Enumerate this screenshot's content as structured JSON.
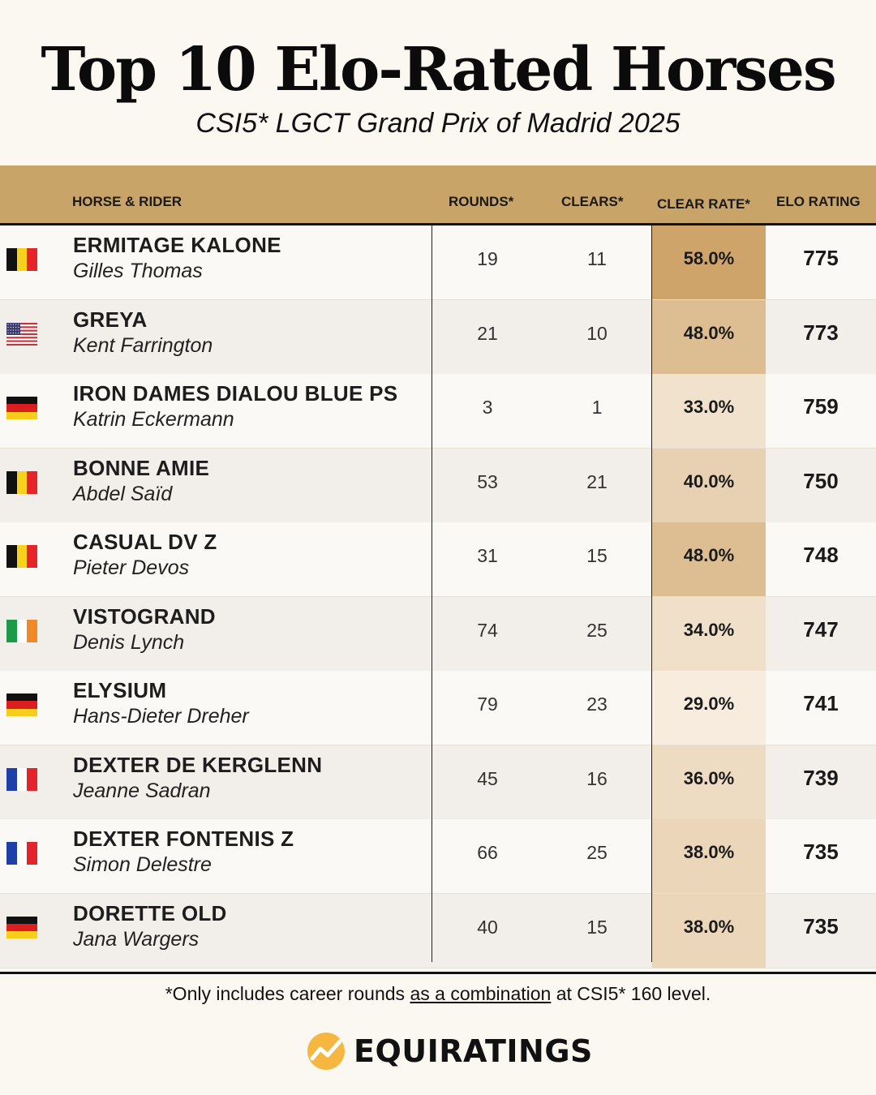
{
  "title": "Top 10 Elo-Rated Horses",
  "subtitle": "CSI5* LGCT Grand Prix of Madrid 2025",
  "header": {
    "horse_rider": "HORSE & RIDER",
    "rounds": "ROUNDS*",
    "clears": "CLEARS*",
    "clear_rate": "CLEAR RATE*",
    "elo": "ELO RATING"
  },
  "rows": [
    {
      "horse": "ERMITAGE KALONE",
      "rider": "Gilles Thomas",
      "flag": "belgium",
      "rounds": "19",
      "clears": "11",
      "clear_rate": "58.0%",
      "rate_value": 58.0,
      "elo": "775"
    },
    {
      "horse": "GREYA",
      "rider": "Kent Farrington",
      "flag": "usa",
      "rounds": "21",
      "clears": "10",
      "clear_rate": "48.0%",
      "rate_value": 48.0,
      "elo": "773"
    },
    {
      "horse": "IRON DAMES DIALOU BLUE PS",
      "rider": "Katrin Eckermann",
      "flag": "germany",
      "rounds": "3",
      "clears": "1",
      "clear_rate": "33.0%",
      "rate_value": 33.0,
      "elo": "759"
    },
    {
      "horse": "BONNE AMIE",
      "rider": "Abdel Saïd",
      "flag": "belgium",
      "rounds": "53",
      "clears": "21",
      "clear_rate": "40.0%",
      "rate_value": 40.0,
      "elo": "750"
    },
    {
      "horse": "CASUAL DV Z",
      "rider": "Pieter Devos",
      "flag": "belgium",
      "rounds": "31",
      "clears": "15",
      "clear_rate": "48.0%",
      "rate_value": 48.0,
      "elo": "748"
    },
    {
      "horse": "VISTOGRAND",
      "rider": "Denis Lynch",
      "flag": "ireland",
      "rounds": "74",
      "clears": "25",
      "clear_rate": "34.0%",
      "rate_value": 34.0,
      "elo": "747"
    },
    {
      "horse": "ELYSIUM",
      "rider": "Hans-Dieter Dreher",
      "flag": "germany",
      "rounds": "79",
      "clears": "23",
      "clear_rate": "29.0%",
      "rate_value": 29.0,
      "elo": "741"
    },
    {
      "horse": "DEXTER DE KERGLENN",
      "rider": "Jeanne Sadran",
      "flag": "france",
      "rounds": "45",
      "clears": "16",
      "clear_rate": "36.0%",
      "rate_value": 36.0,
      "elo": "739"
    },
    {
      "horse": "DEXTER FONTENIS Z",
      "rider": "Simon Delestre",
      "flag": "france",
      "rounds": "66",
      "clears": "25",
      "clear_rate": "38.0%",
      "rate_value": 38.0,
      "elo": "735"
    },
    {
      "horse": "DORETTE OLD",
      "rider": "Jana Wargers",
      "flag": "germany",
      "rounds": "40",
      "clears": "15",
      "clear_rate": "38.0%",
      "rate_value": 38.0,
      "elo": "735"
    }
  ],
  "footnote": {
    "before": "*Only includes career rounds ",
    "link": "as a combination",
    "after": " at CSI5* 160 level."
  },
  "brand": {
    "name": "EQUIRATINGS",
    "logo_icon": "equiratings-logo-icon",
    "logo_color": "#f5b740"
  },
  "colors": {
    "header": "#c9a468",
    "rate_high": "#cfa46a",
    "rate_low": "#f7ecde"
  }
}
